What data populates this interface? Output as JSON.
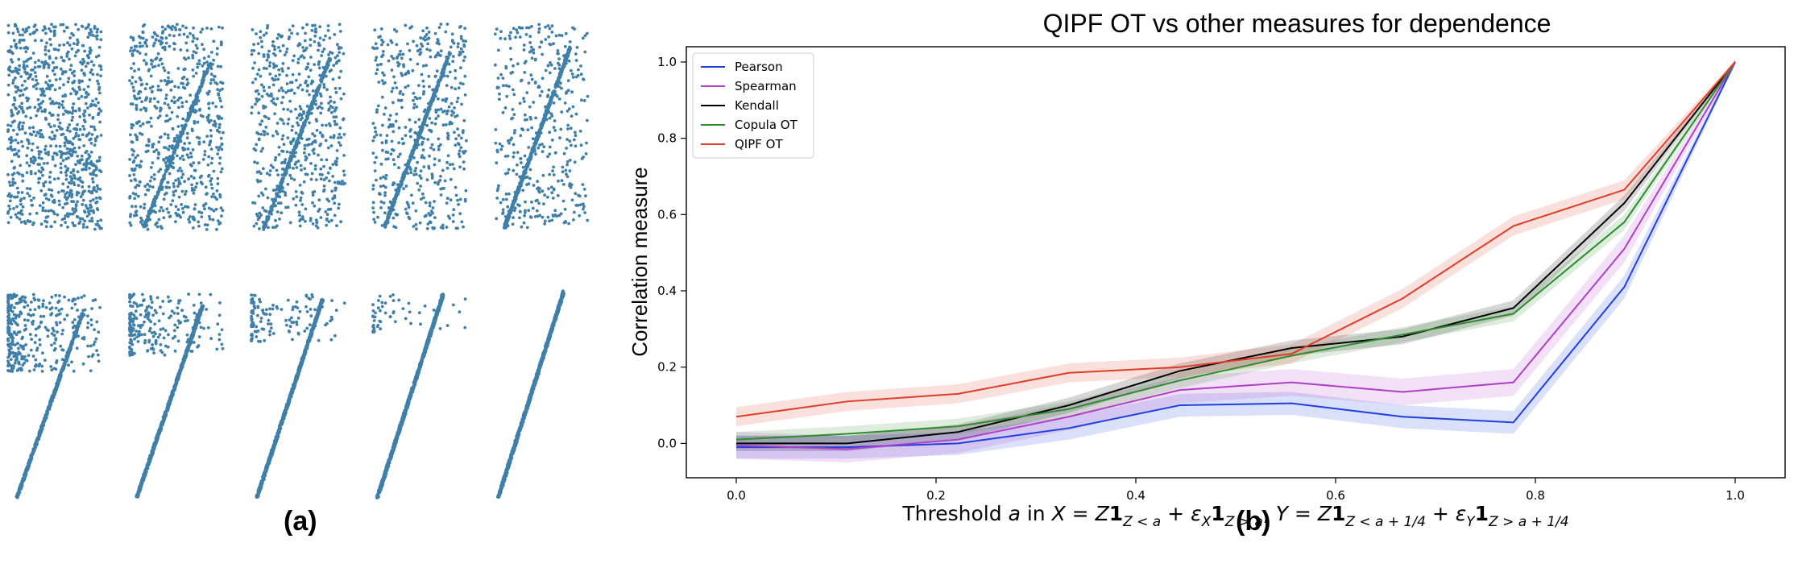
{
  "panel_labels": {
    "a": "(a)",
    "b": "(b)"
  },
  "colors": {
    "scatter_points": "#3f7fa8",
    "pearson": "#1f3fe0",
    "spearman": "#b03fc8",
    "kendall": "#000000",
    "copula": "#2e8b2e",
    "qipf": "#e03c26"
  },
  "scatter_panels": {
    "description_count": 10,
    "top_row": [
      {
        "fraction_on_line": 0.0
      },
      {
        "fraction_on_line": 0.25
      },
      {
        "fraction_on_line": 0.35
      },
      {
        "fraction_on_line": 0.45
      },
      {
        "fraction_on_line": 0.55
      }
    ],
    "bottom_row": [
      {
        "fraction_on_line": 0.62
      },
      {
        "fraction_on_line": 0.75
      },
      {
        "fraction_on_line": 0.86
      },
      {
        "fraction_on_line": 0.94
      },
      {
        "fraction_on_line": 1.0
      }
    ]
  },
  "chart_data": {
    "type": "line",
    "title": "QIPF OT vs other measures for dependence",
    "xlabel": "Threshold a in X = Z1_{Z<a} + ε_X 1_{Z>a}, Y = Z1_{Z<a+1/4} + ε_Y 1_{Z>a+1/4}",
    "ylabel": "Correlation measure",
    "xlim": [
      -0.05,
      1.05
    ],
    "ylim": [
      -0.09,
      1.04
    ],
    "xticks": [
      "0.0",
      "0.2",
      "0.4",
      "0.6",
      "0.8",
      "1.0"
    ],
    "xtick_values": [
      0.0,
      0.2,
      0.4,
      0.6,
      0.8,
      1.0
    ],
    "yticks": [
      "0.0",
      "0.2",
      "0.4",
      "0.6",
      "0.8",
      "1.0"
    ],
    "ytick_values": [
      0.0,
      0.2,
      0.4,
      0.6,
      0.8,
      1.0
    ],
    "legend_position": "top-left",
    "x": [
      0.0,
      0.111,
      0.222,
      0.333,
      0.444,
      0.556,
      0.667,
      0.778,
      0.889,
      1.0
    ],
    "series": [
      {
        "name": "Pearson",
        "key": "pearson",
        "values": [
          -0.01,
          -0.01,
          0.0,
          0.04,
          0.1,
          0.105,
          0.07,
          0.055,
          0.41,
          1.0
        ],
        "band": 0.03
      },
      {
        "name": "Spearman",
        "key": "spearman",
        "values": [
          -0.005,
          -0.015,
          0.01,
          0.07,
          0.14,
          0.16,
          0.135,
          0.16,
          0.51,
          1.0
        ],
        "band": 0.035
      },
      {
        "name": "Kendall",
        "key": "kendall",
        "values": [
          0.0,
          0.0,
          0.03,
          0.1,
          0.19,
          0.25,
          0.28,
          0.355,
          0.63,
          1.0
        ],
        "band": 0.02
      },
      {
        "name": "Copula OT",
        "key": "copula",
        "values": [
          0.01,
          0.025,
          0.045,
          0.09,
          0.165,
          0.23,
          0.285,
          0.34,
          0.58,
          1.0
        ],
        "band": 0.02
      },
      {
        "name": "QIPF OT",
        "key": "qipf",
        "values": [
          0.07,
          0.11,
          0.13,
          0.185,
          0.2,
          0.235,
          0.38,
          0.57,
          0.665,
          1.0
        ],
        "band": 0.025
      }
    ]
  }
}
